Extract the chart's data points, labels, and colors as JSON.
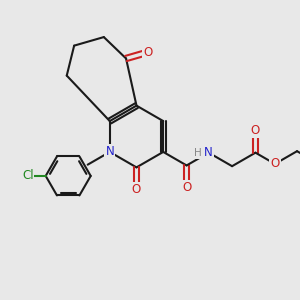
{
  "bg_color": "#e8e8e8",
  "bond_color": "#1a1a1a",
  "N_color": "#2222cc",
  "O_color": "#cc2222",
  "Cl_color": "#228822",
  "H_color": "#888888",
  "line_width": 1.5,
  "font_size": 8.5,
  "xlim": [
    0,
    10
  ],
  "ylim": [
    0,
    10
  ]
}
